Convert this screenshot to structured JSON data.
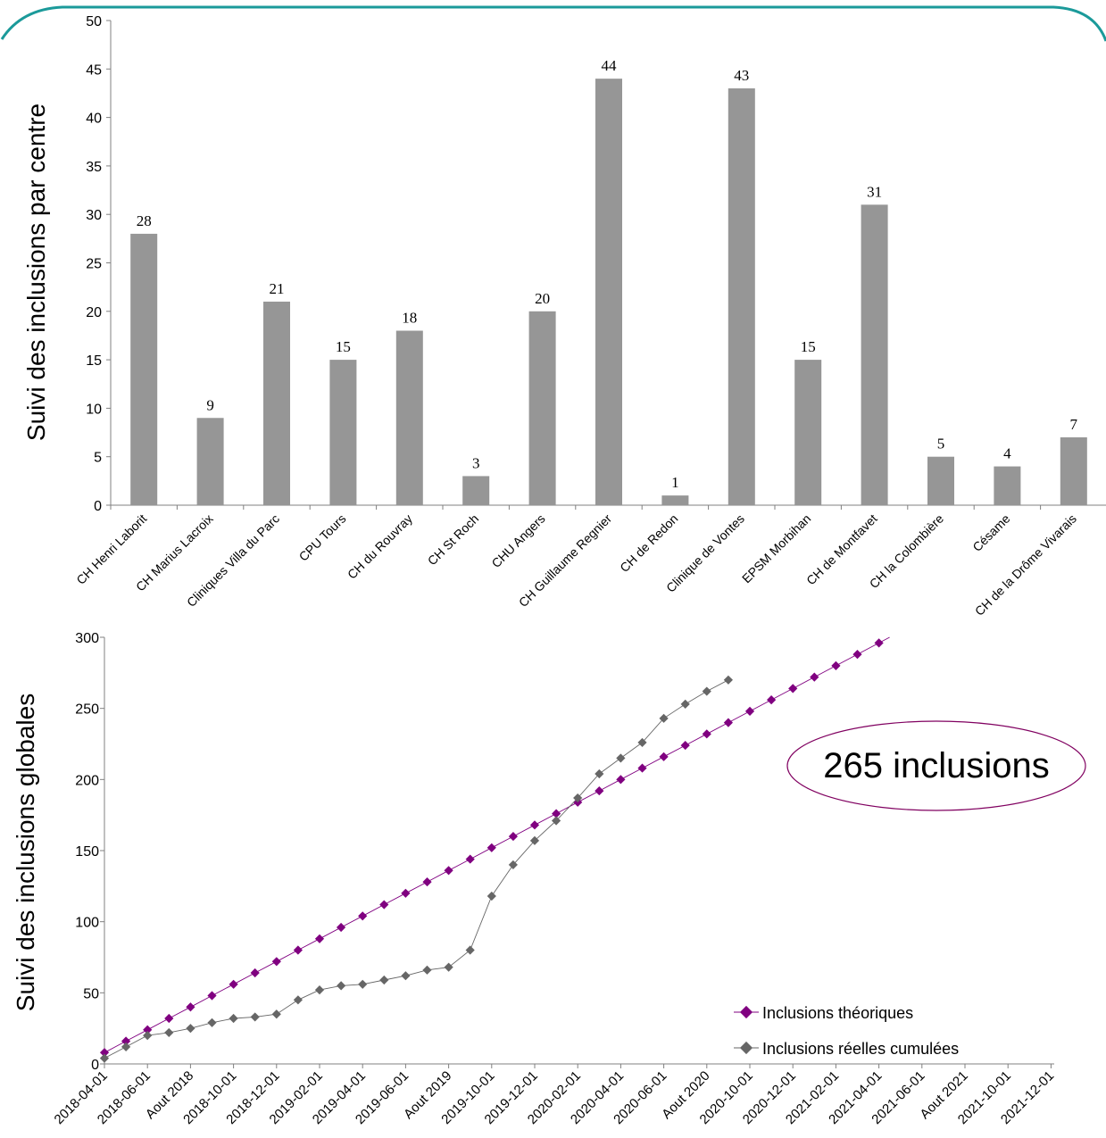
{
  "chart_data": [
    {
      "type": "bar",
      "ylabel": "Suivi des inclusions par centre",
      "ylim": [
        0,
        50
      ],
      "yticks": [
        0,
        5,
        10,
        15,
        20,
        25,
        30,
        35,
        40,
        45,
        50
      ],
      "categories": [
        "CH Henri Laborit",
        "CH Marius Lacroix",
        "Cliniques Villa du Parc",
        "CPU Tours",
        "CH du Rouvray",
        "CH St Roch",
        "CHU Angers",
        "CH Guillaume Regnier",
        "CH de Redon",
        "Clinique de Vontes",
        "EPSM Morbihan",
        "CH de Montfavet",
        "CH la Colombière",
        "Césame",
        "CH de la Drôme Vivarais"
      ],
      "values": [
        28,
        9,
        21,
        15,
        18,
        3,
        20,
        44,
        1,
        43,
        15,
        31,
        5,
        4,
        7
      ],
      "bar_color": "#969696",
      "data_labels": true
    },
    {
      "type": "line",
      "ylabel": "Suivi des inclusions globales",
      "ylim": [
        0,
        300
      ],
      "yticks": [
        0,
        50,
        100,
        150,
        200,
        250,
        300
      ],
      "x_tick_labels": [
        "2018-04-01",
        "2018-06-01",
        "Aout 2018",
        "2018-10-01",
        "2018-12-01",
        "2019-02-01",
        "2019-04-01",
        "2019-06-01",
        "Aout 2019",
        "2019-10-01",
        "2019-12-01",
        "2020-02-01",
        "2020-04-01",
        "2020-06-01",
        "Aout 2020",
        "2020-10-01",
        "2020-12-01",
        "2021-02-01",
        "2021-04-01",
        "2021-06-01",
        "Aout 2021",
        "2021-10-01",
        "2021-12-01"
      ],
      "x": [
        "2018-04",
        "2018-05",
        "2018-06",
        "2018-07",
        "2018-08",
        "2018-09",
        "2018-10",
        "2018-11",
        "2018-12",
        "2019-01",
        "2019-02",
        "2019-03",
        "2019-04",
        "2019-05",
        "2019-06",
        "2019-07",
        "2019-08",
        "2019-09",
        "2019-10",
        "2019-11",
        "2019-12",
        "2020-01",
        "2020-02",
        "2020-03",
        "2020-04",
        "2020-05",
        "2020-06",
        "2020-07",
        "2020-08",
        "2020-09",
        "2020-10",
        "2020-11",
        "2020-12",
        "2021-01",
        "2021-02",
        "2021-03",
        "2021-04",
        "2021-05"
      ],
      "series": [
        {
          "name": "Inclusions théoriques",
          "color": "#800080",
          "marker": "diamond",
          "values": [
            8,
            16,
            24,
            32,
            40,
            48,
            56,
            64,
            72,
            80,
            88,
            96,
            104,
            112,
            120,
            128,
            136,
            144,
            152,
            160,
            168,
            176,
            184,
            192,
            200,
            208,
            216,
            224,
            232,
            240,
            248,
            256,
            264,
            272,
            280,
            288,
            296,
            null
          ]
        },
        {
          "name": "Inclusions réelles cumulées",
          "color": "#666666",
          "marker": "diamond",
          "values": [
            4,
            12,
            20,
            22,
            25,
            29,
            32,
            33,
            35,
            45,
            52,
            55,
            56,
            59,
            62,
            66,
            68,
            80,
            118,
            140,
            157,
            171,
            187,
            204,
            215,
            226,
            243,
            253,
            262,
            270,
            null,
            null,
            null,
            null,
            null,
            null,
            null,
            null
          ]
        }
      ],
      "legend": "bottom-right",
      "annotation": "265 inclusions"
    }
  ]
}
